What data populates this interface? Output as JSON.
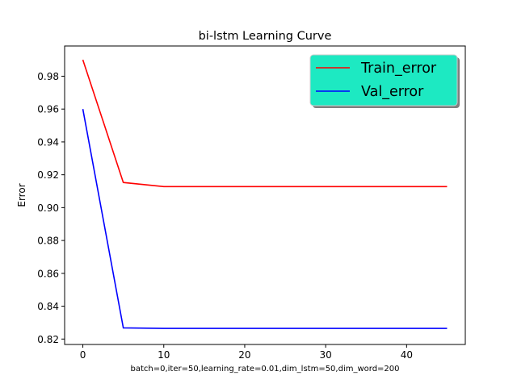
{
  "chart_data": {
    "type": "line",
    "title": "bi-lstm Learning Curve",
    "xlabel": "batch=0,iter=50,learning_rate=0.01,dim_lstm=50,dim_word=200",
    "ylabel": "Error",
    "xlim": [
      -2.25,
      47.25
    ],
    "ylim": [
      0.8167,
      0.9984
    ],
    "xticks": [
      0,
      10,
      20,
      30,
      40
    ],
    "yticks": [
      0.82,
      0.84,
      0.86,
      0.88,
      0.9,
      0.92,
      0.94,
      0.96,
      0.98
    ],
    "ytick_labels": [
      "0.82",
      "0.84",
      "0.86",
      "0.88",
      "0.90",
      "0.92",
      "0.94",
      "0.96",
      "0.98"
    ],
    "grid": false,
    "legend_position": "top-right",
    "legend_background": "#1de9c2",
    "series": [
      {
        "name": "Train_error",
        "color": "#ff0000",
        "x": [
          0,
          5,
          10,
          15,
          20,
          25,
          30,
          35,
          40,
          45
        ],
        "y": [
          0.99,
          0.9153,
          0.9128,
          0.9128,
          0.9128,
          0.9128,
          0.9128,
          0.9128,
          0.9128,
          0.9128
        ]
      },
      {
        "name": "Val_error",
        "color": "#0000ff",
        "x": [
          0,
          5,
          10,
          15,
          20,
          25,
          30,
          35,
          40,
          45
        ],
        "y": [
          0.96,
          0.8268,
          0.8265,
          0.8265,
          0.8265,
          0.8265,
          0.8265,
          0.8265,
          0.8265,
          0.8265
        ]
      }
    ]
  }
}
